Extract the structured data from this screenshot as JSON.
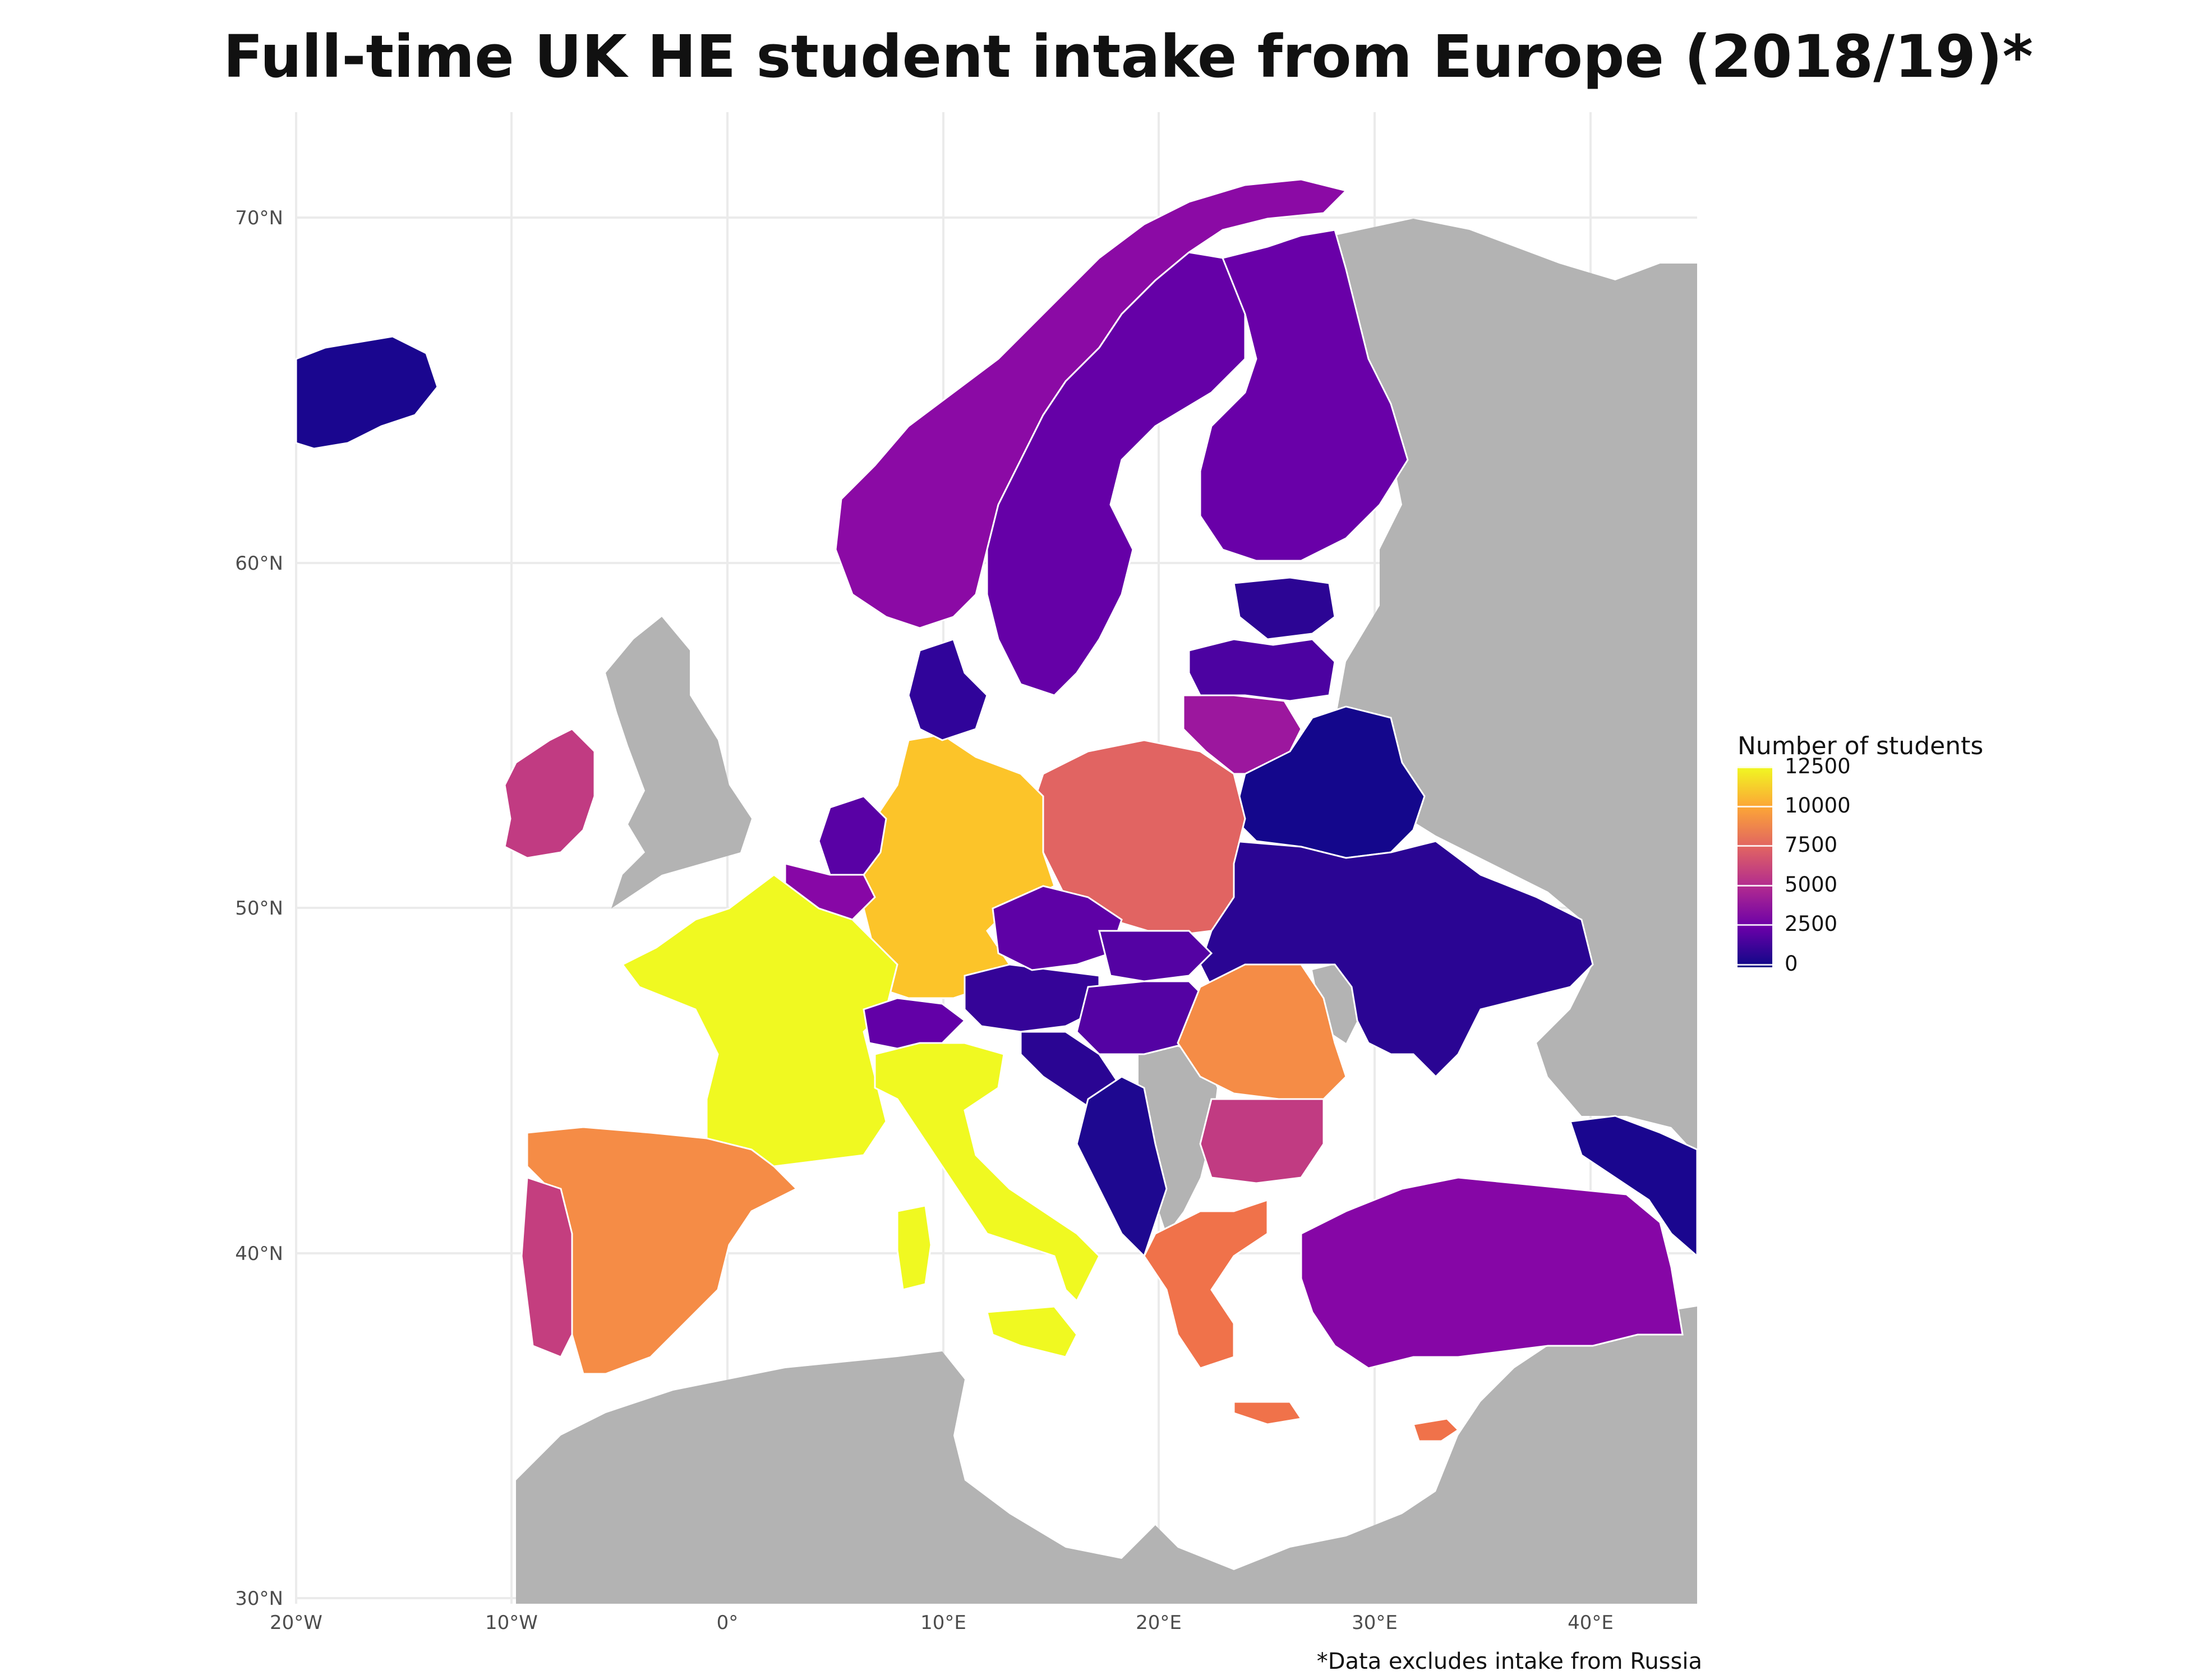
{
  "title": "Full-time UK HE student intake from Europe (2018/19)*",
  "caption": "*Data excludes intake from Russia",
  "legend": {
    "title": "Number of students",
    "ticks": [
      "12500",
      "10000",
      "7500",
      "5000",
      "2500",
      "0"
    ],
    "tick_values": [
      12500,
      10000,
      7500,
      5000,
      2500,
      0
    ],
    "scale": "plasma",
    "colors": [
      "#0d0887",
      "#6a00a8",
      "#b12a90",
      "#e16462",
      "#fca636",
      "#f0f921"
    ]
  },
  "axes": {
    "x_ticks": [
      "20°W",
      "10°W",
      "0°",
      "10°E",
      "20°E",
      "30°E",
      "40°E"
    ],
    "x_values": [
      -20,
      -10,
      0,
      10,
      20,
      30,
      40
    ],
    "y_ticks": [
      "70°N",
      "60°N",
      "50°N",
      "40°N",
      "30°N"
    ],
    "y_values": [
      70,
      60,
      50,
      40,
      30
    ],
    "xlim": [
      -20,
      45
    ],
    "ylim": [
      30,
      73
    ]
  },
  "colors": {
    "non_data_land": "#b3b3b3",
    "background": "#ffffff",
    "grid": "#ebebeb"
  }
}
